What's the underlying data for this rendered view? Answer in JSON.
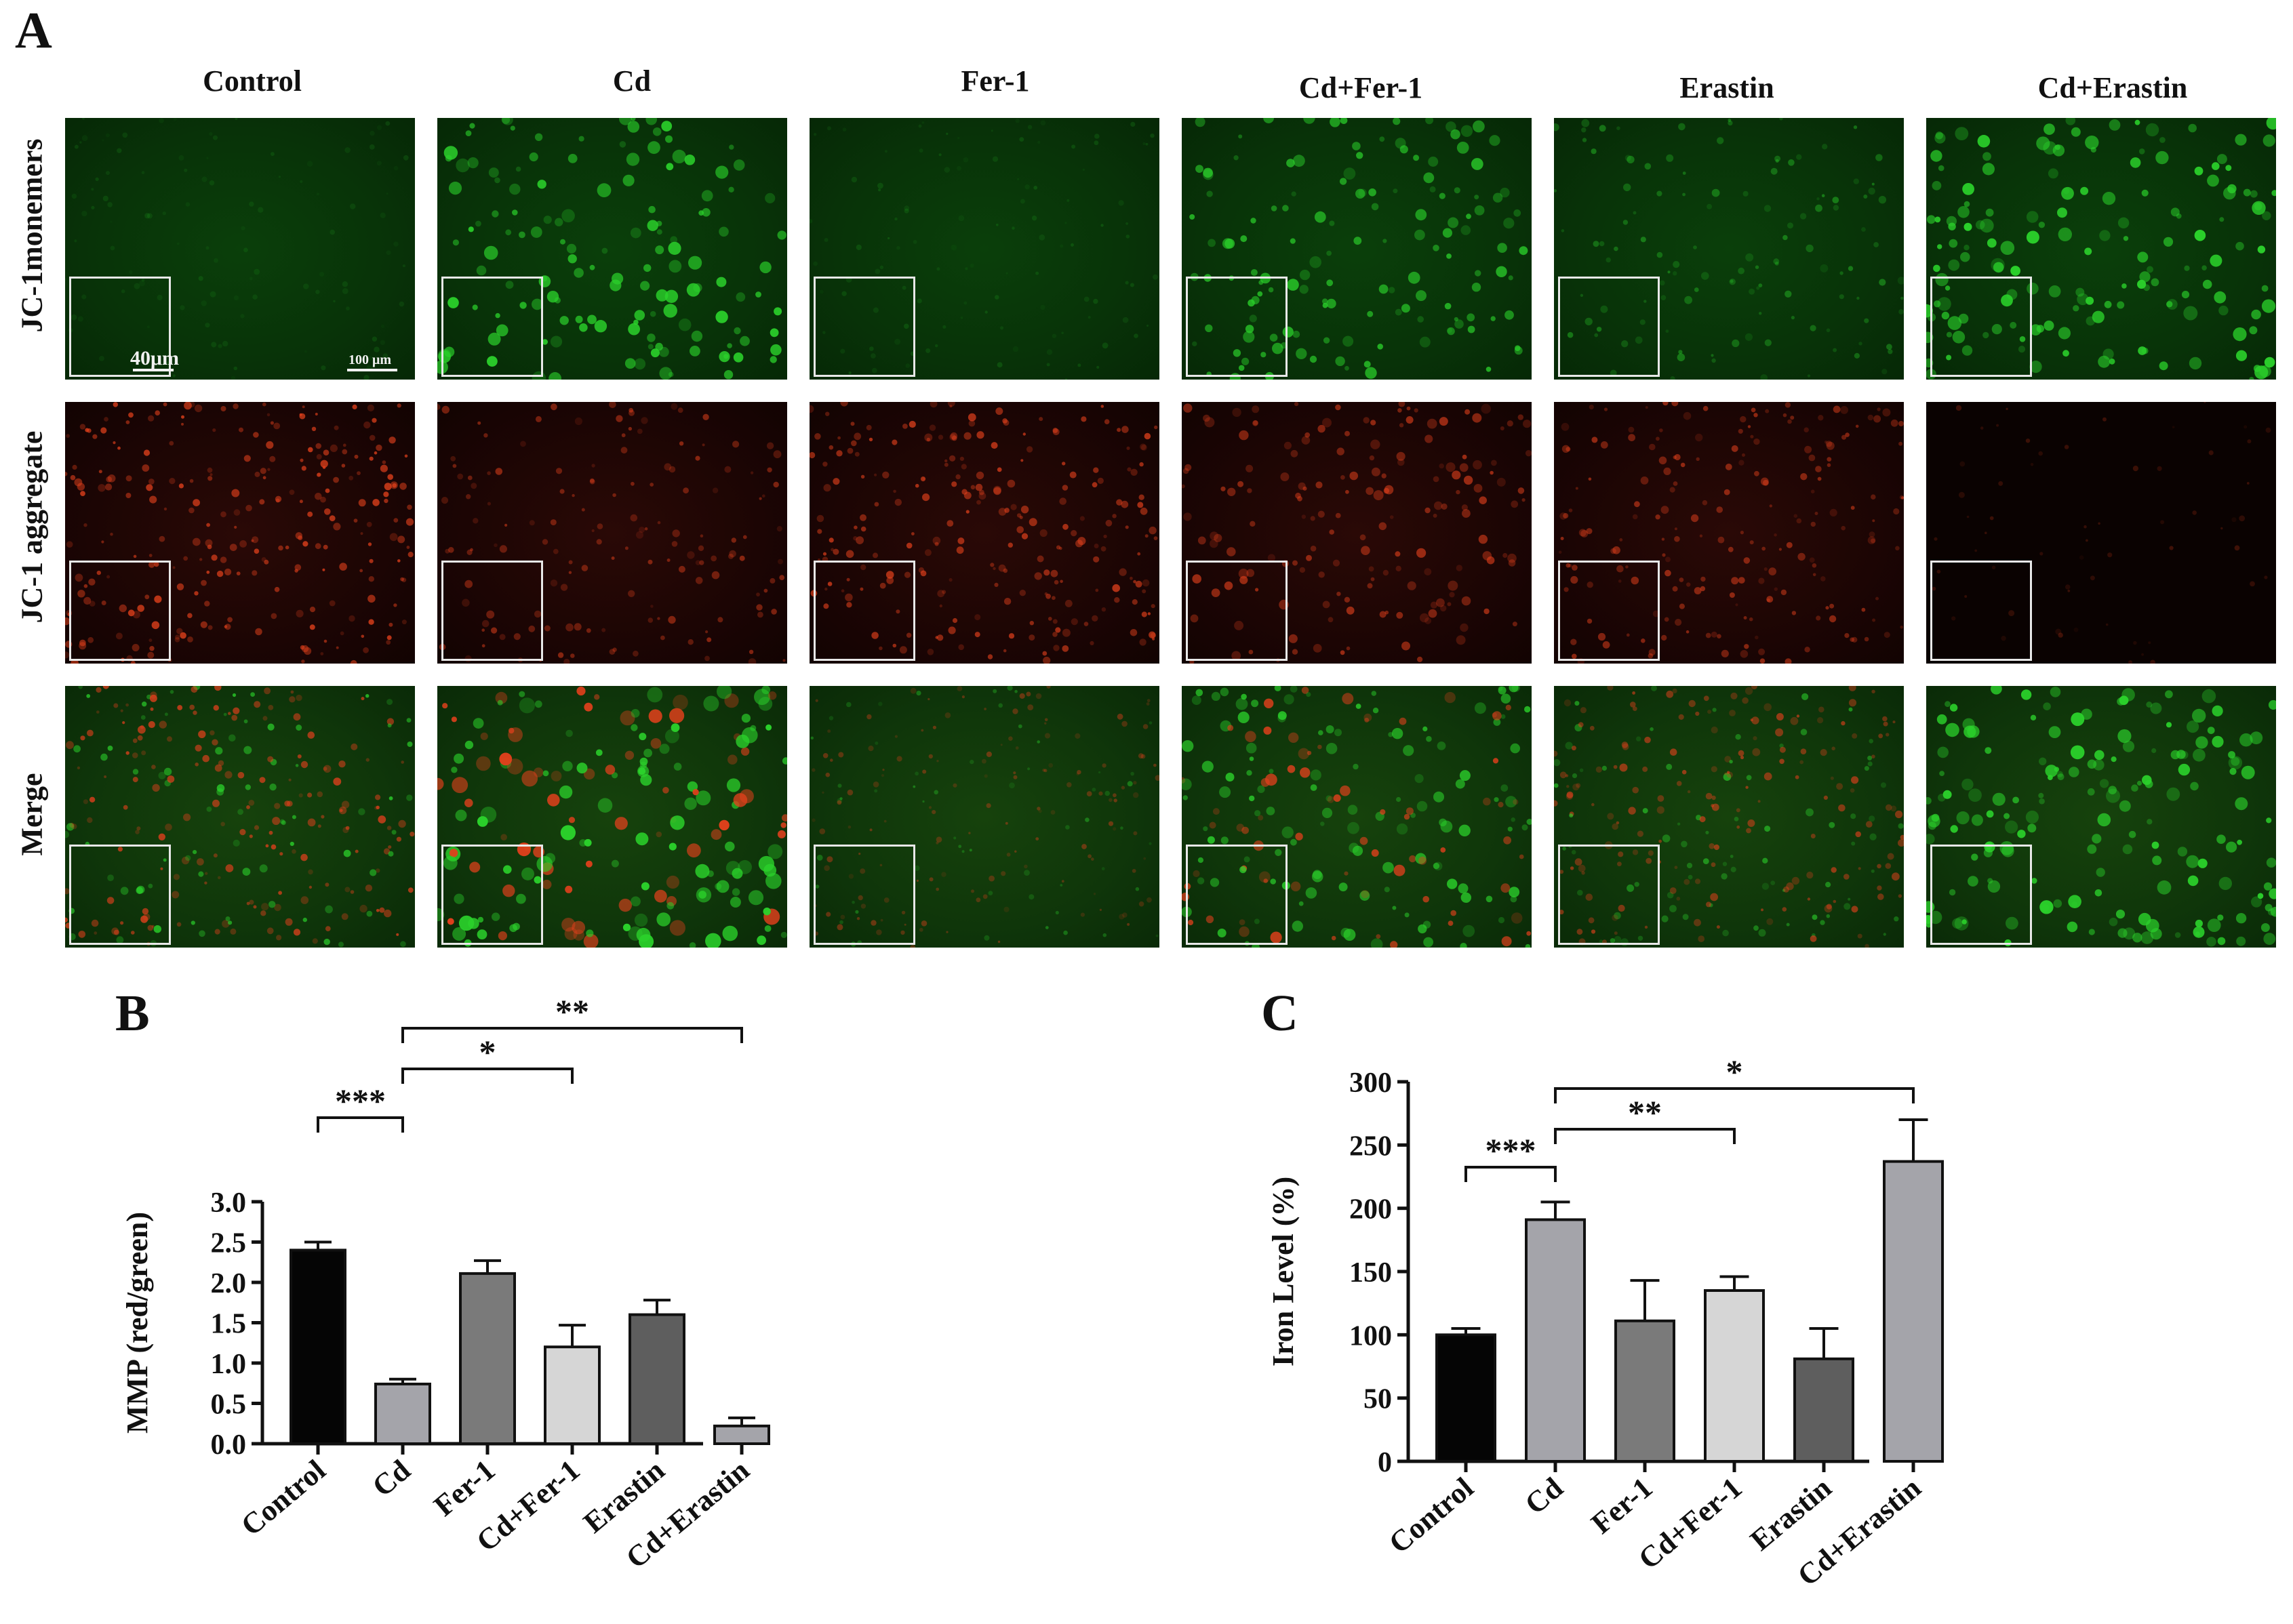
{
  "figure": {
    "panels": [
      "A",
      "B",
      "C"
    ],
    "columns": [
      "Control",
      "Cd",
      "Fer-1",
      "Cd+Fer-1",
      "Erastin",
      "Cd+Erastin"
    ],
    "rows": [
      "JC-1monemers",
      "JC-1 aggregate",
      "Merge"
    ],
    "scale_bars": {
      "inset": "40μm",
      "main": "100 μm"
    },
    "channel_colors": {
      "green": "#2bd12b",
      "red": "#e0401c"
    }
  },
  "chart_data": [
    {
      "type": "bar",
      "panel": "B",
      "categories": [
        "Control",
        "Cd",
        "Fer-1",
        "Cd+Fer-1",
        "Erastin",
        "Cd+Erastin"
      ],
      "values": [
        2.4,
        0.74,
        2.11,
        1.2,
        1.6,
        0.22
      ],
      "errors": [
        0.1,
        0.06,
        0.16,
        0.27,
        0.18,
        0.1
      ],
      "bar_colors": [
        "#050505",
        "#a4a4aa",
        "#7a7a7a",
        "#d6d6d6",
        "#5e5e5e",
        "#a4a4aa"
      ],
      "ylabel": "MMP (red/green)",
      "ylim": [
        0,
        3.0
      ],
      "yticks": [
        "0.0",
        "0.5",
        "1.0",
        "1.5",
        "2.0",
        "2.5",
        "3.0"
      ],
      "significance": [
        {
          "from": 0,
          "to": 1,
          "label": "***"
        },
        {
          "from": 1,
          "to": 3,
          "label": "*"
        },
        {
          "from": 1,
          "to": 5,
          "label": "**"
        }
      ]
    },
    {
      "type": "bar",
      "panel": "C",
      "categories": [
        "Control",
        "Cd",
        "Fer-1",
        "Cd+Fer-1",
        "Erastin",
        "Cd+Erastin"
      ],
      "values": [
        100,
        191,
        111,
        135,
        81,
        237
      ],
      "errors": [
        5,
        14,
        32,
        11,
        24,
        33
      ],
      "bar_colors": [
        "#050505",
        "#a4a4aa",
        "#7a7a7a",
        "#d6d6d6",
        "#5e5e5e",
        "#a4a4aa"
      ],
      "ylabel": "Iron Level (%)",
      "ylim": [
        0,
        300
      ],
      "yticks": [
        "0",
        "50",
        "100",
        "150",
        "200",
        "250",
        "300"
      ],
      "significance": [
        {
          "from": 0,
          "to": 1,
          "label": "***"
        },
        {
          "from": 1,
          "to": 3,
          "label": "**"
        },
        {
          "from": 1,
          "to": 5,
          "label": "*"
        }
      ]
    }
  ]
}
